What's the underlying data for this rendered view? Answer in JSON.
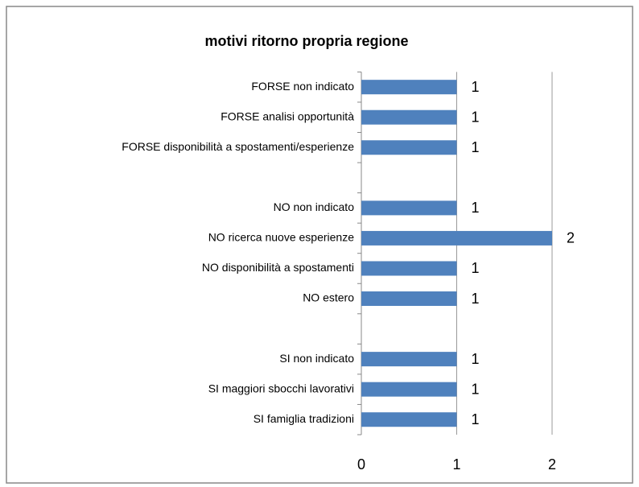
{
  "chart_data": {
    "type": "bar",
    "orientation": "horizontal",
    "title": "motivi ritorno propria regione",
    "categories": [
      "FORSE non indicato",
      "FORSE analisi opportunità",
      "FORSE disponibilità a spostamenti/esperienze",
      null,
      "NO non indicato",
      "NO ricerca nuove esperienze",
      "NO disponibilità a spostamenti",
      "NO estero",
      null,
      "SI non indicato",
      "SI maggiori sbocchi lavorativi",
      "SI famiglia tradizioni"
    ],
    "values": [
      1,
      1,
      1,
      null,
      1,
      2,
      1,
      1,
      null,
      1,
      1,
      1
    ],
    "color": "#4f81bd",
    "xlim": [
      0,
      2
    ],
    "xticks": [
      0,
      1,
      2
    ],
    "grid": true
  }
}
